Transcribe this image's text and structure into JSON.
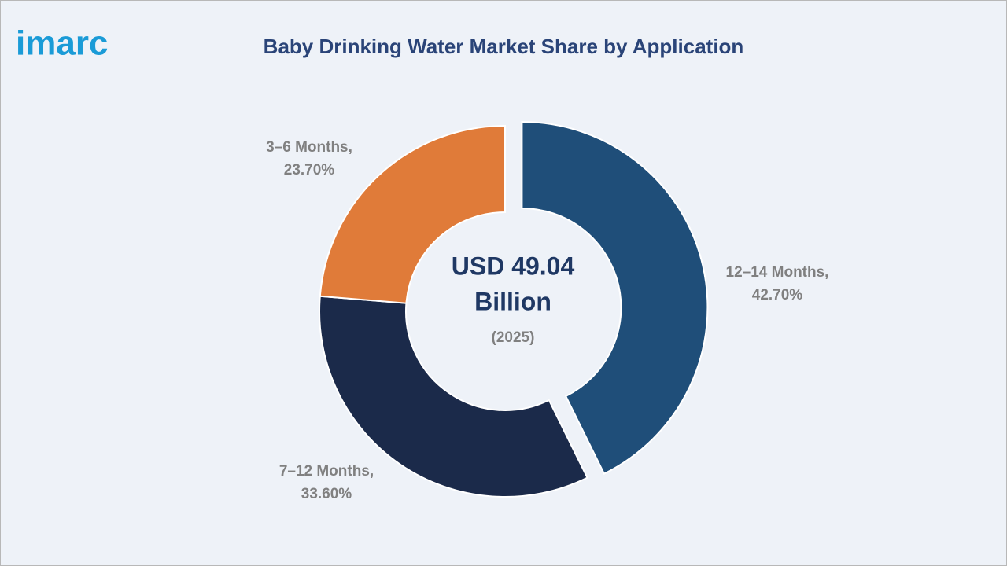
{
  "logo": "imarc",
  "chart_data": {
    "type": "pie",
    "donut": true,
    "title": "Baby Drinking Water Market Share by Application",
    "categories": [
      "12–14 Months,",
      "7–12 Months,",
      "3–6 Months,"
    ],
    "values": [
      42.7,
      33.6,
      23.7
    ],
    "value_labels": [
      "42.70%",
      "33.60%",
      "23.70%"
    ],
    "colors": [
      "#1f4e79",
      "#1b2a4a",
      "#e07b39"
    ],
    "exploded": [
      true,
      false,
      false
    ],
    "center_label": [
      "USD 49.04",
      "Billion"
    ],
    "center_sublabel": "(2025)"
  }
}
